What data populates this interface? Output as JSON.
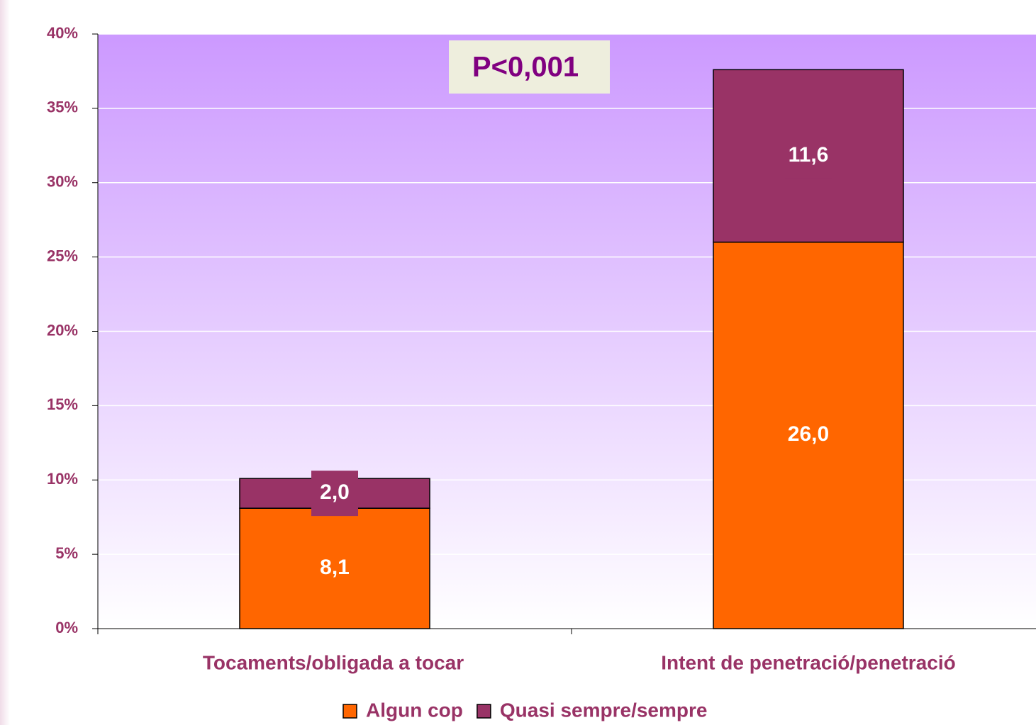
{
  "chart_data": {
    "type": "bar",
    "stacked": true,
    "annotation": "P<0,001",
    "categories": [
      "Tocaments/obligada a tocar",
      "Intent de penetració/penetració"
    ],
    "series": [
      {
        "name": "Algun cop",
        "color": "#ff6600",
        "values": [
          8.1,
          26.0
        ],
        "value_labels": [
          "8,1",
          "26,0"
        ]
      },
      {
        "name": "Quasi sempre/sempre",
        "color": "#993366",
        "values": [
          2.0,
          11.6
        ],
        "value_labels": [
          "2,0",
          "11,6"
        ]
      }
    ],
    "ylim": [
      0,
      40
    ],
    "yticks": [
      {
        "value": 0,
        "label": "0%"
      },
      {
        "value": 5,
        "label": "5%"
      },
      {
        "value": 10,
        "label": "10%"
      },
      {
        "value": 15,
        "label": "15%"
      },
      {
        "value": 20,
        "label": "20%"
      },
      {
        "value": 25,
        "label": "25%"
      },
      {
        "value": 30,
        "label": "30%"
      },
      {
        "value": 35,
        "label": "35%"
      },
      {
        "value": 40,
        "label": "40%"
      }
    ],
    "grid": true,
    "legend": "bottom"
  }
}
